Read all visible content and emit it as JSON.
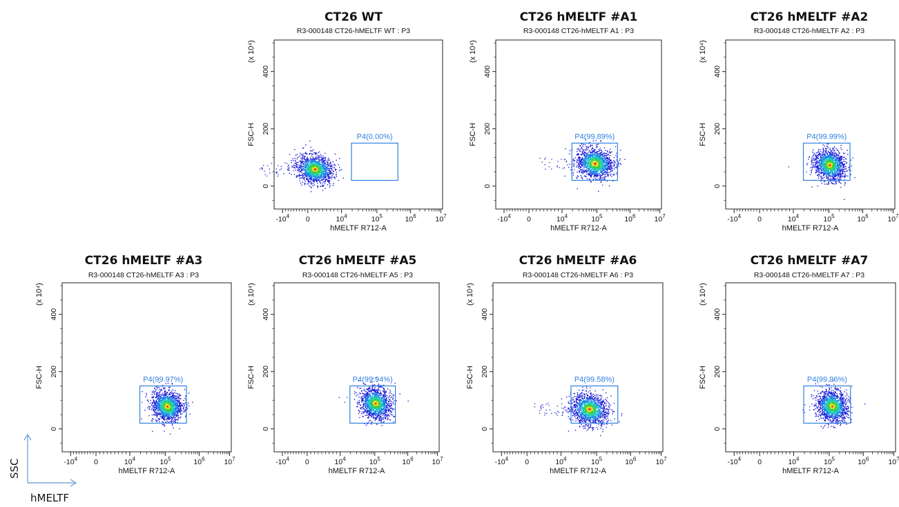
{
  "figure_legend": {
    "y_label": "SSC",
    "x_label": "hMELTF"
  },
  "chart_data": [
    {
      "type": "scatter",
      "title": "CT26 WT",
      "subtitle": "R3-000148 CT26-hMELTF WT : P3",
      "xlabel": "hMELTF R712-A",
      "ylabel": "FSC-H",
      "y_multiplier": "(x 10⁴)",
      "x_scale": "biexponential",
      "x_ticks": [
        "-10⁴",
        "0",
        "10⁴",
        "10⁵",
        "10⁶",
        "10⁷"
      ],
      "y_ticks": [
        "0",
        "200",
        "400"
      ],
      "ylim": [
        -80,
        510
      ],
      "gate": {
        "name": "P4",
        "percent": "P4(0.00%)",
        "x_range": [
          20000,
          500000
        ],
        "y_range": [
          20,
          150
        ]
      },
      "population": {
        "x_center": 2000,
        "y_center": 60,
        "spread": "wide-left"
      }
    },
    {
      "type": "scatter",
      "title": "CT26 hMELTF #A1",
      "subtitle": "R3-000148 CT26-hMELTF A1 : P3",
      "xlabel": "hMELTF R712-A",
      "ylabel": "FSC-H",
      "y_multiplier": "(x 10⁴)",
      "x_scale": "biexponential",
      "x_ticks": [
        "-10⁴",
        "0",
        "10⁴",
        "10⁵",
        "10⁶",
        "10⁷"
      ],
      "y_ticks": [
        "0",
        "200",
        "400"
      ],
      "ylim": [
        -80,
        510
      ],
      "gate": {
        "name": "P4",
        "percent": "P4(99.89%)",
        "x_range": [
          20000,
          500000
        ],
        "y_range": [
          20,
          150
        ]
      },
      "population": {
        "x_center": 100000,
        "y_center": 80,
        "spread": "left-tail"
      }
    },
    {
      "type": "scatter",
      "title": "CT26 hMELTF #A2",
      "subtitle": "R3-000148 CT26-hMELTF A2 : P3",
      "xlabel": "hMELTF R712-A",
      "ylabel": "FSC-H",
      "y_multiplier": "(x 10⁴)",
      "x_scale": "biexponential",
      "x_ticks": [
        "-10⁴",
        "0",
        "10⁴",
        "10⁵",
        "10⁶",
        "10⁷"
      ],
      "y_ticks": [
        "0",
        "200",
        "400"
      ],
      "ylim": [
        -80,
        510
      ],
      "gate": {
        "name": "P4",
        "percent": "P4(99.99%)",
        "x_range": [
          20000,
          500000
        ],
        "y_range": [
          20,
          150
        ]
      },
      "population": {
        "x_center": 120000,
        "y_center": 75,
        "spread": "tight"
      }
    },
    {
      "type": "scatter",
      "title": "CT26 hMELTF #A3",
      "subtitle": "R3-000148 CT26-hMELTF A3 : P3",
      "xlabel": "hMELTF R712-A",
      "ylabel": "FSC-H",
      "y_multiplier": "(x 10⁴)",
      "x_scale": "biexponential",
      "x_ticks": [
        "-10⁴",
        "0",
        "10⁴",
        "10⁵",
        "10⁶",
        "10⁷"
      ],
      "y_ticks": [
        "0",
        "200",
        "400"
      ],
      "ylim": [
        -80,
        510
      ],
      "gate": {
        "name": "P4",
        "percent": "P4(99.97%)",
        "x_range": [
          20000,
          500000
        ],
        "y_range": [
          20,
          150
        ]
      },
      "population": {
        "x_center": 130000,
        "y_center": 80,
        "spread": "tight"
      }
    },
    {
      "type": "scatter",
      "title": "CT26 hMELTF #A5",
      "subtitle": "R3-000148 CT26-hMELTF A5 : P3",
      "xlabel": "hMELTF R712-A",
      "ylabel": "FSC-H",
      "y_multiplier": "(x 10⁴)",
      "x_scale": "biexponential",
      "x_ticks": [
        "-10⁴",
        "0",
        "10⁴",
        "10⁵",
        "10⁶",
        "10⁷"
      ],
      "y_ticks": [
        "0",
        "200",
        "400"
      ],
      "ylim": [
        -80,
        510
      ],
      "gate": {
        "name": "P4",
        "percent": "P4(99.94%)",
        "x_range": [
          20000,
          500000
        ],
        "y_range": [
          20,
          150
        ]
      },
      "population": {
        "x_center": 120000,
        "y_center": 90,
        "spread": "tight"
      }
    },
    {
      "type": "scatter",
      "title": "CT26 hMELTF #A6",
      "subtitle": "R3-000148 CT26-hMELTF A6 : P3",
      "xlabel": "hMELTF R712-A",
      "ylabel": "FSC-H",
      "y_multiplier": "(x 10⁴)",
      "x_scale": "biexponential",
      "x_ticks": [
        "-10⁴",
        "0",
        "10⁴",
        "10⁵",
        "10⁶",
        "10⁷"
      ],
      "y_ticks": [
        "0",
        "200",
        "400"
      ],
      "ylim": [
        -80,
        510
      ],
      "gate": {
        "name": "P4",
        "percent": "P4(99.58%)",
        "x_range": [
          20000,
          500000
        ],
        "y_range": [
          20,
          150
        ]
      },
      "population": {
        "x_center": 70000,
        "y_center": 70,
        "spread": "left-tail"
      }
    },
    {
      "type": "scatter",
      "title": "CT26 hMELTF #A7",
      "subtitle": "R3-000148 CT26-hMELTF A7 : P3",
      "xlabel": "hMELTF R712-A",
      "ylabel": "FSC-H",
      "y_multiplier": "(x 10⁴)",
      "x_scale": "biexponential",
      "x_ticks": [
        "-10⁴",
        "0",
        "10⁴",
        "10⁵",
        "10⁶",
        "10⁷"
      ],
      "y_ticks": [
        "0",
        "200",
        "400"
      ],
      "ylim": [
        -80,
        510
      ],
      "gate": {
        "name": "P4",
        "percent": "P4(99.96%)",
        "x_range": [
          20000,
          500000
        ],
        "y_range": [
          20,
          150
        ]
      },
      "population": {
        "x_center": 140000,
        "y_center": 80,
        "spread": "tight"
      }
    }
  ]
}
